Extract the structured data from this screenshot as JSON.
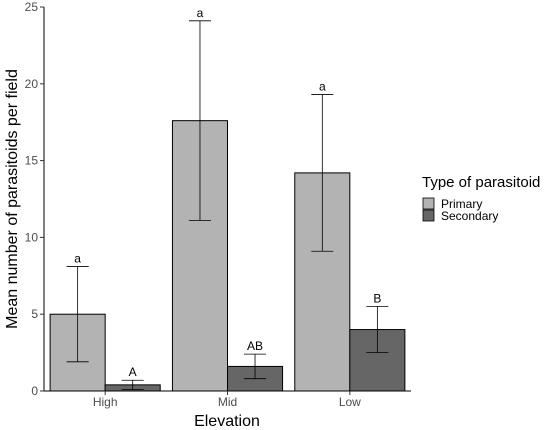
{
  "chart_data": {
    "type": "bar",
    "xlabel": "Elevation",
    "ylabel": "Mean number of parasitoids per field",
    "ylim": [
      0,
      25
    ],
    "yticks": [
      0,
      5,
      10,
      15,
      20,
      25
    ],
    "categories": [
      "High",
      "Mid",
      "Low"
    ],
    "legend": {
      "title": "Type of parasitoid",
      "placement": "right"
    },
    "grid": false,
    "series": [
      {
        "name": "Primary",
        "color": "#b3b3b3",
        "values": [
          5.0,
          17.6,
          14.2
        ],
        "err_low": [
          1.9,
          11.1,
          9.1
        ],
        "err_high": [
          8.1,
          24.1,
          19.3
        ],
        "labels": [
          "a",
          "a",
          "a"
        ]
      },
      {
        "name": "Secondary",
        "color": "#666666",
        "values": [
          0.4,
          1.6,
          4.0
        ],
        "err_low": [
          0.1,
          0.8,
          2.5
        ],
        "err_high": [
          0.7,
          2.4,
          5.5
        ],
        "labels": [
          "A",
          "AB",
          "B"
        ]
      }
    ]
  }
}
